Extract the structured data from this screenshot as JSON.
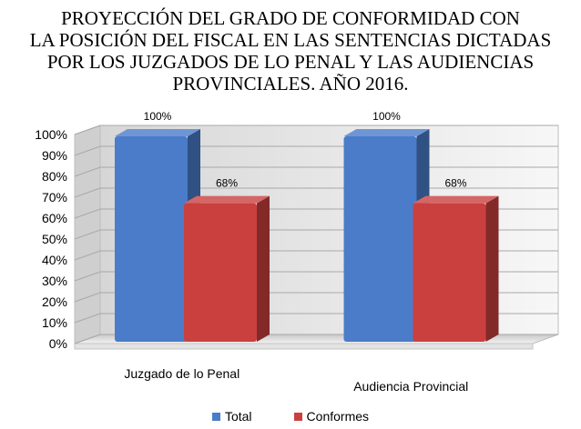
{
  "chart_data": {
    "type": "bar",
    "title_lines": [
      "PROYECCIÓN DEL GRADO DE CONFORMIDAD CON",
      "LA POSICIÓN DEL FISCAL EN LAS SENTENCIAS DICTADAS",
      "POR LOS JUZGADOS DE LO PENAL Y LAS AUDIENCIAS",
      "PROVINCIALES. AÑO 2016."
    ],
    "categories": [
      "Juzgado de lo Penal",
      "Audiencia Provincial"
    ],
    "series": [
      {
        "name": "Total",
        "values": [
          100,
          100
        ],
        "labels": [
          "100%",
          "100%"
        ],
        "color": "#4a7cc9"
      },
      {
        "name": "Conformes",
        "values": [
          68,
          68
        ],
        "labels": [
          "68%",
          "68%"
        ],
        "color": "#c9403f"
      }
    ],
    "ylim": [
      0,
      100
    ],
    "yticks": [
      "0%",
      "10%",
      "20%",
      "30%",
      "40%",
      "50%",
      "60%",
      "70%",
      "80%",
      "90%",
      "100%"
    ],
    "grid": true,
    "legend_position": "bottom",
    "three_d": true
  }
}
